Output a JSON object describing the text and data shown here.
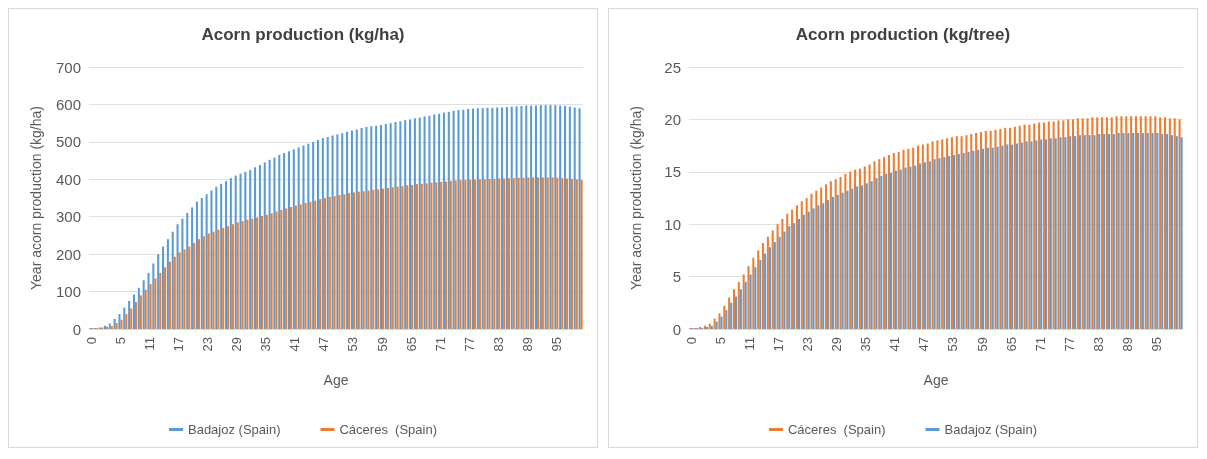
{
  "chart_data": [
    {
      "type": "bar",
      "title": "Acorn production (kg/ha)",
      "xlabel": "Age",
      "ylabel": "Year acorn production (kg/ha)",
      "categories": [
        "0",
        null,
        null,
        null,
        null,
        null,
        "5",
        null,
        null,
        null,
        null,
        null,
        "11",
        null,
        null,
        null,
        null,
        null,
        "17",
        null,
        null,
        null,
        null,
        null,
        "23",
        null,
        null,
        null,
        null,
        null,
        "29",
        null,
        null,
        null,
        null,
        null,
        "35",
        null,
        null,
        null,
        null,
        null,
        "41",
        null,
        null,
        null,
        null,
        null,
        "47",
        null,
        null,
        null,
        null,
        null,
        "53",
        null,
        null,
        null,
        null,
        null,
        "59",
        null,
        null,
        null,
        null,
        null,
        "65",
        null,
        null,
        null,
        null,
        null,
        "71",
        null,
        null,
        null,
        null,
        null,
        "77",
        null,
        null,
        null,
        null,
        null,
        "83",
        null,
        null,
        null,
        null,
        null,
        "89",
        null,
        null,
        null,
        null,
        null,
        "95",
        null,
        null,
        null,
        null,
        null
      ],
      "series": [
        {
          "name": "Badajoz (Spain)",
          "color": "#5b9bd5",
          "values": [
            2,
            3,
            4,
            9,
            15,
            27,
            40,
            57,
            75,
            92,
            110,
            130,
            150,
            175,
            200,
            220,
            240,
            260,
            280,
            295,
            310,
            325,
            340,
            350,
            360,
            370,
            380,
            388,
            395,
            403,
            410,
            415,
            420,
            425,
            432,
            438,
            445,
            452,
            458,
            465,
            470,
            475,
            480,
            485,
            490,
            495,
            500,
            505,
            510,
            513,
            517,
            520,
            523,
            527,
            530,
            533,
            537,
            540,
            542,
            543,
            545,
            548,
            550,
            553,
            555,
            558,
            560,
            563,
            565,
            568,
            570,
            573,
            575,
            578,
            580,
            583,
            585,
            586,
            588,
            589,
            590,
            590,
            591,
            591,
            592,
            592,
            593,
            594,
            595,
            596,
            597,
            597,
            597,
            598,
            598,
            598,
            598,
            597,
            596,
            594,
            592,
            590
          ]
        },
        {
          "name": "Cáceres  (Spain)",
          "color": "#ed7d31",
          "values": [
            1,
            2,
            4,
            6,
            8,
            16,
            25,
            40,
            55,
            72,
            90,
            105,
            120,
            135,
            150,
            165,
            180,
            193,
            205,
            213,
            220,
            230,
            240,
            248,
            255,
            260,
            265,
            270,
            275,
            280,
            285,
            288,
            292,
            295,
            298,
            302,
            305,
            309,
            314,
            318,
            322,
            326,
            330,
            333,
            337,
            340,
            343,
            347,
            350,
            353,
            355,
            358,
            360,
            363,
            365,
            367,
            368,
            370,
            372,
            373,
            375,
            377,
            379,
            380,
            382,
            384,
            385,
            387,
            388,
            389,
            391,
            392,
            393,
            394,
            396,
            397,
            398,
            398,
            399,
            399,
            400,
            400,
            401,
            401,
            402,
            402,
            403,
            403,
            404,
            404,
            405,
            405,
            405,
            405,
            405,
            405,
            404,
            403,
            402,
            401,
            400,
            398
          ]
        }
      ],
      "ylim": [
        0,
        700
      ],
      "yticks": [
        0,
        100,
        200,
        300,
        400,
        500,
        600,
        700
      ],
      "grid": "y",
      "legend": "bottom"
    },
    {
      "type": "bar",
      "title": "Acorn production (kg/tree)",
      "xlabel": "Age",
      "ylabel": "Year acorn production (kg/ha)",
      "categories": [
        "0",
        null,
        null,
        null,
        null,
        null,
        "5",
        null,
        null,
        null,
        null,
        null,
        "11",
        null,
        null,
        null,
        null,
        null,
        "17",
        null,
        null,
        null,
        null,
        null,
        "23",
        null,
        null,
        null,
        null,
        null,
        "29",
        null,
        null,
        null,
        null,
        null,
        "35",
        null,
        null,
        null,
        null,
        null,
        "41",
        null,
        null,
        null,
        null,
        null,
        "47",
        null,
        null,
        null,
        null,
        null,
        "53",
        null,
        null,
        null,
        null,
        null,
        "59",
        null,
        null,
        null,
        null,
        null,
        "65",
        null,
        null,
        null,
        null,
        null,
        "71",
        null,
        null,
        null,
        null,
        null,
        "77",
        null,
        null,
        null,
        null,
        null,
        "83",
        null,
        null,
        null,
        null,
        null,
        "89",
        null,
        null,
        null,
        null,
        null,
        "95",
        null,
        null,
        null,
        null,
        null
      ],
      "series": [
        {
          "name": "Cáceres  (Spain)",
          "color": "#ed7d31",
          "values": [
            0.1,
            0.1,
            0.2,
            0.3,
            0.5,
            1.0,
            1.5,
            2.2,
            3.0,
            3.8,
            4.5,
            5.2,
            6.0,
            6.8,
            7.5,
            8.2,
            8.8,
            9.4,
            10.0,
            10.5,
            11.0,
            11.4,
            11.8,
            12.2,
            12.5,
            12.9,
            13.2,
            13.5,
            13.8,
            14.1,
            14.3,
            14.5,
            14.8,
            15.0,
            15.2,
            15.3,
            15.5,
            15.7,
            16.0,
            16.2,
            16.4,
            16.6,
            16.8,
            16.9,
            17.1,
            17.2,
            17.3,
            17.5,
            17.6,
            17.7,
            17.9,
            18.0,
            18.1,
            18.2,
            18.3,
            18.4,
            18.4,
            18.5,
            18.6,
            18.7,
            18.8,
            18.9,
            18.9,
            19.0,
            19.1,
            19.2,
            19.2,
            19.3,
            19.4,
            19.5,
            19.5,
            19.6,
            19.7,
            19.7,
            19.8,
            19.8,
            19.9,
            19.9,
            20.0,
            20.0,
            20.1,
            20.1,
            20.1,
            20.2,
            20.2,
            20.2,
            20.2,
            20.2,
            20.3,
            20.3,
            20.3,
            20.3,
            20.3,
            20.3,
            20.3,
            20.3,
            20.3,
            20.2,
            20.2,
            20.1,
            20.1,
            20.0
          ]
        },
        {
          "name": "Badajoz (Spain)",
          "color": "#5b9bd5",
          "values": [
            0.1,
            0.1,
            0.1,
            0.2,
            0.3,
            0.7,
            1.2,
            1.8,
            2.5,
            3.1,
            3.8,
            4.5,
            5.2,
            5.9,
            6.6,
            7.2,
            7.8,
            8.3,
            8.8,
            9.3,
            9.8,
            10.1,
            10.5,
            10.9,
            11.2,
            11.5,
            11.8,
            12.0,
            12.3,
            12.6,
            12.8,
            13.0,
            13.2,
            13.4,
            13.6,
            13.7,
            13.9,
            14.1,
            14.4,
            14.6,
            14.8,
            14.9,
            15.1,
            15.2,
            15.4,
            15.5,
            15.6,
            15.8,
            15.9,
            16.0,
            16.2,
            16.3,
            16.4,
            16.5,
            16.6,
            16.7,
            16.8,
            16.9,
            17.0,
            17.1,
            17.2,
            17.3,
            17.3,
            17.4,
            17.5,
            17.6,
            17.6,
            17.7,
            17.8,
            17.9,
            17.9,
            18.0,
            18.1,
            18.1,
            18.2,
            18.2,
            18.3,
            18.3,
            18.4,
            18.4,
            18.5,
            18.5,
            18.5,
            18.5,
            18.6,
            18.6,
            18.6,
            18.6,
            18.7,
            18.7,
            18.7,
            18.7,
            18.7,
            18.7,
            18.7,
            18.7,
            18.7,
            18.6,
            18.6,
            18.5,
            18.4,
            18.3
          ]
        }
      ],
      "ylim": [
        0,
        25
      ],
      "yticks": [
        0,
        5,
        10,
        15,
        20,
        25
      ],
      "grid": "y",
      "legend": "bottom"
    }
  ]
}
